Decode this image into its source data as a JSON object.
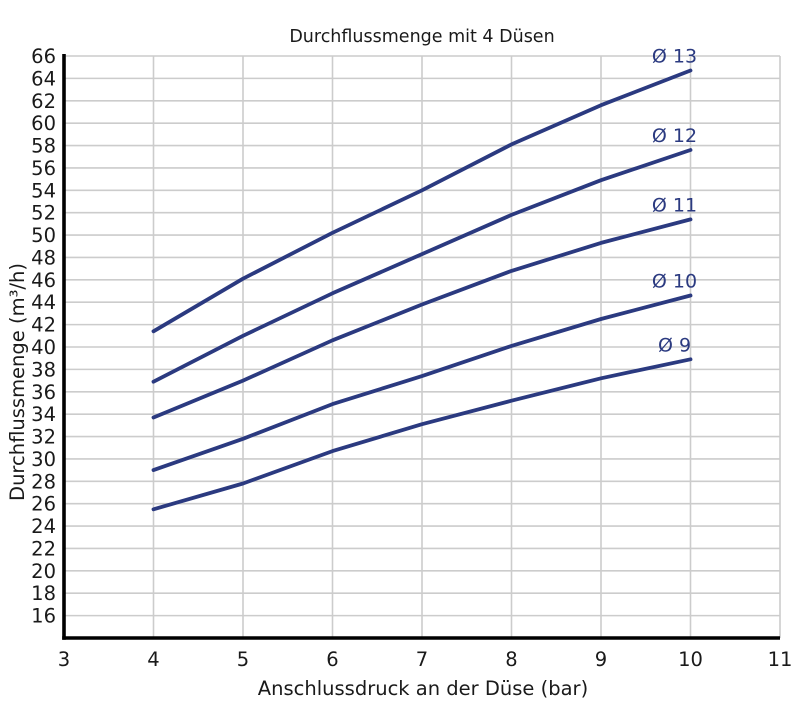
{
  "chart_data": {
    "type": "line",
    "title": "Durchflussmenge mit 4 Düsen",
    "xlabel": "Anschlussdruck an der Düse (bar)",
    "ylabel": "Durchflussmenge (m³/h)",
    "xlim": [
      3,
      11
    ],
    "ylim": [
      14,
      66
    ],
    "xticks": [
      3,
      4,
      5,
      6,
      7,
      8,
      9,
      10,
      11
    ],
    "yticks": [
      16,
      18,
      20,
      22,
      24,
      26,
      28,
      30,
      32,
      34,
      36,
      38,
      40,
      42,
      44,
      46,
      48,
      50,
      52,
      54,
      56,
      58,
      60,
      62,
      64,
      66
    ],
    "grid": true,
    "legend_position": "inline-above-line-right-end",
    "x": [
      4,
      5,
      6,
      7,
      8,
      9,
      10
    ],
    "series": [
      {
        "name": "Ø 13",
        "values": [
          41.4,
          46.1,
          50.2,
          54.0,
          58.1,
          61.6,
          64.7
        ]
      },
      {
        "name": "Ø 12",
        "values": [
          36.9,
          41.0,
          44.8,
          48.3,
          51.8,
          54.9,
          57.6
        ]
      },
      {
        "name": "Ø 11",
        "values": [
          33.7,
          37.0,
          40.6,
          43.8,
          46.8,
          49.3,
          51.4
        ]
      },
      {
        "name": "Ø 10",
        "values": [
          29.0,
          31.8,
          34.9,
          37.4,
          40.1,
          42.5,
          44.6
        ]
      },
      {
        "name": "Ø 9",
        "values": [
          25.5,
          27.8,
          30.7,
          33.1,
          35.2,
          37.2,
          38.9
        ]
      }
    ],
    "colors": {
      "line": "#2b3a80",
      "series_label": "#2b3a80",
      "grid": "#cccccc",
      "axis": "#000000",
      "text": "#1a1a1a",
      "background": "#ffffff"
    }
  }
}
